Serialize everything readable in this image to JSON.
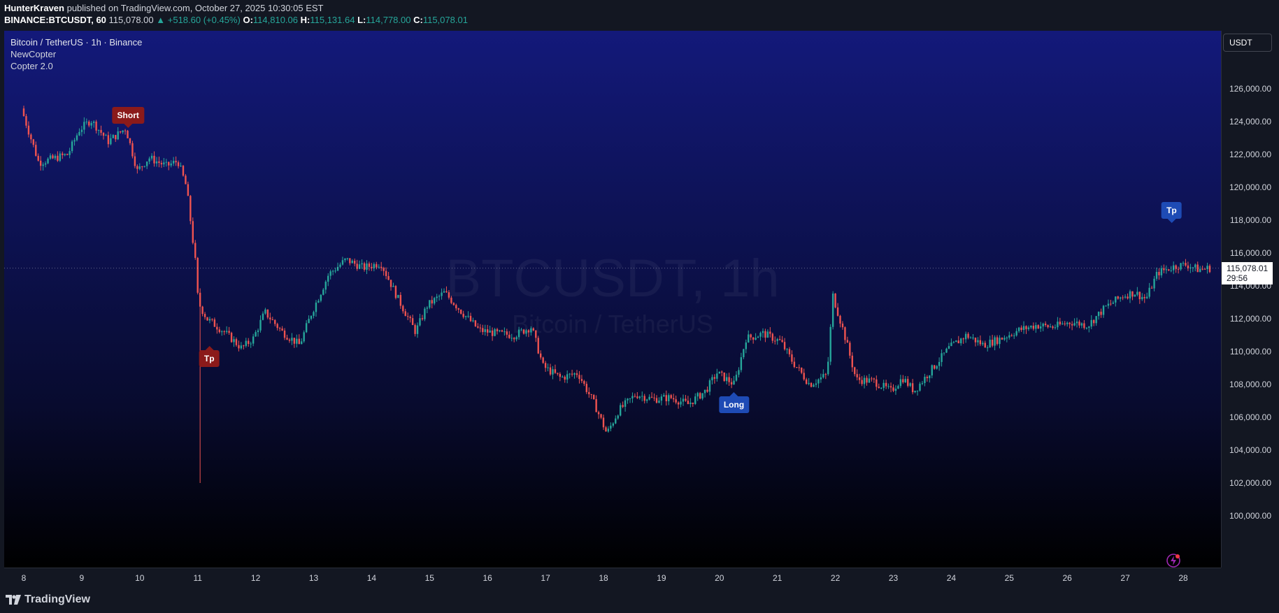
{
  "header": {
    "publisher": "HunterKraven",
    "published_text": "published on TradingView.com, October 27, 2025 10:30:05 EST",
    "symbol": "BINANCE:BTCUSDT, 60",
    "last": "115,078.00",
    "change": "▲ +518.60 (+0.45%)",
    "o_label": "O:",
    "o_value": "114,810.06",
    "h_label": "H:",
    "h_value": "115,131.64",
    "l_label": "L:",
    "l_value": "114,778.00",
    "c_label": "C:",
    "c_value": "115,078.01"
  },
  "legend": {
    "title": "Bitcoin / TetherUS · 1h · Binance",
    "indicator1": "NewCopter",
    "indicator2": "Copter 2.0"
  },
  "watermark": {
    "main": "BTCUSDT, 1h",
    "sub": "Bitcoin / TetherUS"
  },
  "price_axis": {
    "currency": "USDT",
    "ticks": [
      "126,000.00",
      "124,000.00",
      "122,000.00",
      "120,000.00",
      "118,000.00",
      "116,000.00",
      "114,000.00",
      "112,000.00",
      "110,000.00",
      "108,000.00",
      "106,000.00",
      "104,000.00",
      "102,000.00",
      "100,000.00"
    ],
    "current_price": "115,078.01",
    "countdown": "29:56"
  },
  "time_axis": {
    "labels": [
      "8",
      "9",
      "10",
      "11",
      "12",
      "13",
      "14",
      "15",
      "16",
      "17",
      "18",
      "19",
      "20",
      "21",
      "22",
      "23",
      "24",
      "25",
      "26",
      "27",
      "28"
    ]
  },
  "signals": {
    "short": "Short",
    "tp1": "Tp",
    "long": "Long",
    "tp2": "Tp"
  },
  "footer": {
    "brand": "TradingView"
  },
  "colors": {
    "up": "#26a69a",
    "down": "#ef5350",
    "short_bg": "#8b1a1a",
    "long_bg": "#1e4bb5"
  },
  "chart_data": {
    "type": "candlestick",
    "x_labels": [
      "8",
      "9",
      "10",
      "11",
      "12",
      "13",
      "14",
      "15",
      "16",
      "17",
      "18",
      "19",
      "20",
      "21",
      "22",
      "23",
      "24",
      "25",
      "26",
      "27",
      "28"
    ],
    "ylim": [
      99500,
      127500
    ],
    "keypoints": [
      [
        0,
        124800
      ],
      [
        0.3,
        121500
      ],
      [
        0.8,
        122000
      ],
      [
        1.0,
        123500
      ],
      [
        1.2,
        124100
      ],
      [
        1.5,
        122800
      ],
      [
        1.8,
        123600
      ],
      [
        2.0,
        121000
      ],
      [
        2.2,
        121800
      ],
      [
        2.5,
        121300
      ],
      [
        2.7,
        121600
      ],
      [
        2.85,
        120000
      ],
      [
        3.0,
        115500
      ],
      [
        3.05,
        113000
      ],
      [
        3.2,
        112000
      ],
      [
        3.5,
        111200
      ],
      [
        3.8,
        110200
      ],
      [
        4.0,
        110800
      ],
      [
        4.2,
        112400
      ],
      [
        4.5,
        111200
      ],
      [
        4.8,
        110400
      ],
      [
        5.0,
        112300
      ],
      [
        5.3,
        114700
      ],
      [
        5.6,
        115600
      ],
      [
        5.9,
        115100
      ],
      [
        6.2,
        115400
      ],
      [
        6.5,
        113200
      ],
      [
        6.8,
        111200
      ],
      [
        7.0,
        112800
      ],
      [
        7.3,
        113600
      ],
      [
        7.6,
        112400
      ],
      [
        7.9,
        111300
      ],
      [
        8.2,
        111100
      ],
      [
        8.5,
        111000
      ],
      [
        8.8,
        111500
      ],
      [
        9.0,
        109100
      ],
      [
        9.3,
        108400
      ],
      [
        9.6,
        108700
      ],
      [
        9.9,
        106700
      ],
      [
        10.1,
        105000
      ],
      [
        10.3,
        106400
      ],
      [
        10.6,
        107400
      ],
      [
        10.9,
        107100
      ],
      [
        11.2,
        107200
      ],
      [
        11.5,
        106800
      ],
      [
        11.8,
        107600
      ],
      [
        12.0,
        108700
      ],
      [
        12.3,
        108000
      ],
      [
        12.5,
        110800
      ],
      [
        12.8,
        111100
      ],
      [
        13.1,
        110600
      ],
      [
        13.3,
        109400
      ],
      [
        13.6,
        108000
      ],
      [
        13.9,
        108600
      ],
      [
        14.0,
        113400
      ],
      [
        14.2,
        111000
      ],
      [
        14.4,
        108300
      ],
      [
        14.7,
        108200
      ],
      [
        15.0,
        107600
      ],
      [
        15.2,
        108400
      ],
      [
        15.4,
        107600
      ],
      [
        15.7,
        108900
      ],
      [
        16.0,
        110200
      ],
      [
        16.3,
        111000
      ],
      [
        16.6,
        110400
      ],
      [
        16.9,
        110800
      ],
      [
        17.2,
        111300
      ],
      [
        17.5,
        111600
      ],
      [
        17.8,
        111500
      ],
      [
        18.1,
        111800
      ],
      [
        18.4,
        111600
      ],
      [
        18.7,
        112700
      ],
      [
        19.0,
        113400
      ],
      [
        19.2,
        113600
      ],
      [
        19.4,
        113200
      ],
      [
        19.6,
        114800
      ],
      [
        19.9,
        115200
      ],
      [
        20.1,
        115300
      ],
      [
        20.3,
        115000
      ],
      [
        20.5,
        115078
      ]
    ],
    "markers": [
      {
        "label": "Short",
        "x": 1.8,
        "price": 123600
      },
      {
        "label": "Tp",
        "x": 3.2,
        "price": 110600
      },
      {
        "label": "Long",
        "x": 12.25,
        "price": 107800
      },
      {
        "label": "Tp",
        "x": 19.8,
        "price": 117500
      }
    ]
  }
}
